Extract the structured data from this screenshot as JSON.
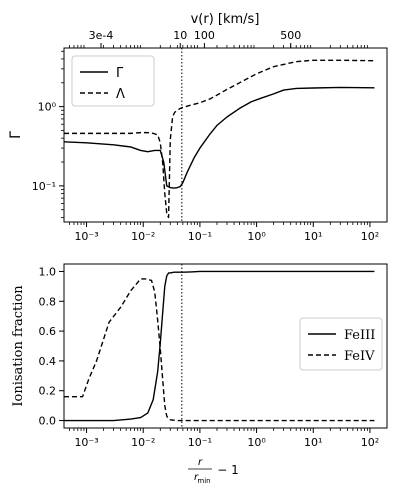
{
  "chart_data": [
    {
      "type": "line",
      "title": "",
      "xlabel": "",
      "ylabel": "Γ",
      "xscale": "log",
      "yscale": "log",
      "xlim": [
        0.0004,
        200
      ],
      "ylim": [
        0.035,
        5.5
      ],
      "x_ticks": [
        {
          "value": 0.001,
          "label": "10⁻³"
        },
        {
          "value": 0.01,
          "label": "10⁻²"
        },
        {
          "value": 0.1,
          "label": "10⁻¹"
        },
        {
          "value": 1,
          "label": "10⁰"
        },
        {
          "value": 10,
          "label": "10¹"
        },
        {
          "value": 100,
          "label": "10²"
        }
      ],
      "y_ticks": [
        {
          "value": 0.1,
          "label": "10⁻¹"
        },
        {
          "value": 1,
          "label": "10⁰"
        }
      ],
      "top_axis": {
        "label": "v(r) [km/s]",
        "ticks": [
          {
            "value": 0.0018,
            "label": "3e-4"
          },
          {
            "value": 0.045,
            "label": "10"
          },
          {
            "value": 0.12,
            "label": "100"
          },
          {
            "value": 4.0,
            "label": "500"
          }
        ]
      },
      "vline_x": 0.048,
      "legend": "top-left",
      "series": [
        {
          "name": "Γ",
          "style": "solid",
          "x": [
            0.0004,
            0.001,
            0.003,
            0.006,
            0.009,
            0.012,
            0.016,
            0.02,
            0.023,
            0.026,
            0.03,
            0.035,
            0.04,
            0.045,
            0.05,
            0.06,
            0.08,
            0.1,
            0.15,
            0.2,
            0.3,
            0.5,
            0.8,
            1.2,
            2,
            3,
            5,
            10,
            30,
            120
          ],
          "y": [
            0.36,
            0.35,
            0.33,
            0.31,
            0.28,
            0.27,
            0.28,
            0.28,
            0.2,
            0.1,
            0.095,
            0.094,
            0.095,
            0.098,
            0.11,
            0.15,
            0.23,
            0.3,
            0.45,
            0.58,
            0.74,
            0.95,
            1.15,
            1.28,
            1.45,
            1.62,
            1.7,
            1.72,
            1.75,
            1.73
          ]
        },
        {
          "name": "Λ",
          "style": "dashed",
          "x": [
            0.0004,
            0.001,
            0.003,
            0.006,
            0.009,
            0.012,
            0.015,
            0.018,
            0.02,
            0.022,
            0.024,
            0.026,
            0.028,
            0.03,
            0.033,
            0.036,
            0.04,
            0.045,
            0.05,
            0.07,
            0.1,
            0.15,
            0.2,
            0.3,
            0.5,
            1,
            2,
            5,
            10,
            30,
            120
          ],
          "y": [
            0.46,
            0.46,
            0.46,
            0.46,
            0.47,
            0.47,
            0.46,
            0.44,
            0.35,
            0.2,
            0.08,
            0.045,
            0.04,
            0.38,
            0.75,
            0.85,
            0.9,
            0.95,
            0.98,
            1.05,
            1.12,
            1.25,
            1.4,
            1.65,
            2.0,
            2.6,
            3.2,
            3.7,
            3.85,
            3.85,
            3.8
          ]
        }
      ]
    },
    {
      "type": "line",
      "title": "",
      "xlabel": "r/r_min − 1",
      "ylabel": "Ionisation fraction",
      "xscale": "log",
      "yscale": "linear",
      "xlim": [
        0.0004,
        200
      ],
      "ylim": [
        -0.05,
        1.05
      ],
      "x_ticks": [
        {
          "value": 0.001,
          "label": "10⁻³"
        },
        {
          "value": 0.01,
          "label": "10⁻²"
        },
        {
          "value": 0.1,
          "label": "10⁻¹"
        },
        {
          "value": 1,
          "label": "10⁰"
        },
        {
          "value": 10,
          "label": "10¹"
        },
        {
          "value": 100,
          "label": "10²"
        }
      ],
      "y_ticks": [
        {
          "value": 0.0,
          "label": "0.0"
        },
        {
          "value": 0.2,
          "label": "0.2"
        },
        {
          "value": 0.4,
          "label": "0.4"
        },
        {
          "value": 0.6,
          "label": "0.6"
        },
        {
          "value": 0.8,
          "label": "0.8"
        },
        {
          "value": 1.0,
          "label": "1.0"
        }
      ],
      "vline_x": 0.048,
      "legend": "center-right",
      "series": [
        {
          "name": "FeIII",
          "style": "solid",
          "x": [
            0.0004,
            0.001,
            0.003,
            0.006,
            0.009,
            0.012,
            0.015,
            0.018,
            0.02,
            0.022,
            0.024,
            0.026,
            0.028,
            0.03,
            0.035,
            0.04,
            0.05,
            0.07,
            0.1,
            1,
            10,
            120
          ],
          "y": [
            0.0,
            0.0,
            0.0,
            0.01,
            0.02,
            0.05,
            0.14,
            0.33,
            0.52,
            0.72,
            0.9,
            0.97,
            0.99,
            0.99,
            0.995,
            0.995,
            0.995,
            0.997,
            1.0,
            1.0,
            1.0,
            1.0
          ]
        },
        {
          "name": "FeIV",
          "style": "dashed",
          "x": [
            0.0004,
            0.00085,
            0.0011,
            0.0015,
            0.0025,
            0.004,
            0.006,
            0.009,
            0.011,
            0.014,
            0.016,
            0.018,
            0.02,
            0.022,
            0.024,
            0.026,
            0.028,
            0.03,
            0.04,
            0.05,
            0.1,
            1,
            10,
            120
          ],
          "y": [
            0.16,
            0.16,
            0.28,
            0.4,
            0.66,
            0.76,
            0.87,
            0.95,
            0.95,
            0.94,
            0.86,
            0.67,
            0.48,
            0.28,
            0.1,
            0.03,
            0.01,
            0.005,
            0.0,
            0.0,
            0.0,
            0.0,
            0.0,
            0.0
          ]
        }
      ]
    }
  ]
}
